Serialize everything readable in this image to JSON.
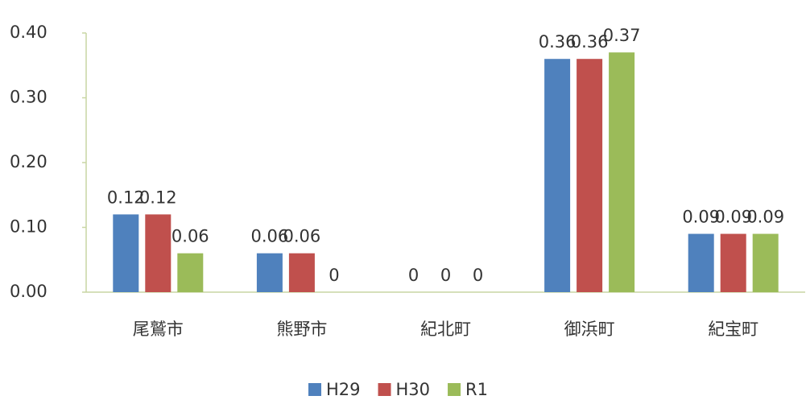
{
  "chart_data": {
    "type": "bar",
    "categories": [
      "尾鷲市",
      "熊野市",
      "紀北町",
      "御浜町",
      "紀宝町"
    ],
    "series": [
      {
        "name": "H29",
        "color": "#4f81bd",
        "values": [
          0.12,
          0.06,
          0,
          0.36,
          0.09
        ]
      },
      {
        "name": "H30",
        "color": "#c0504d",
        "values": [
          0.12,
          0.06,
          0,
          0.36,
          0.09
        ]
      },
      {
        "name": "R1",
        "color": "#9bbb59",
        "values": [
          0.06,
          0,
          0,
          0.37,
          0.09
        ]
      }
    ],
    "ylim": [
      0,
      0.4
    ],
    "yticks": [
      {
        "value": 0,
        "label": "0.00"
      },
      {
        "value": 0.1,
        "label": "0.10"
      },
      {
        "value": 0.2,
        "label": "0.20"
      },
      {
        "value": 0.3,
        "label": "0.30"
      },
      {
        "value": 0.4,
        "label": "0.40"
      }
    ],
    "grid": false,
    "legend": "bottom"
  }
}
